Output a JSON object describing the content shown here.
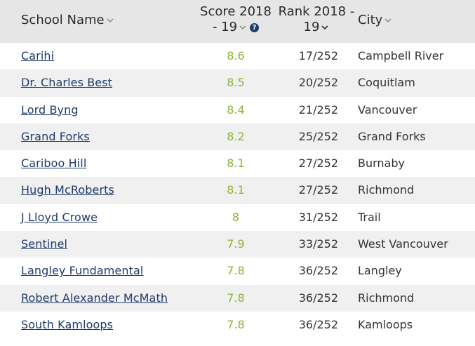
{
  "header": {
    "school_name": "School Name",
    "score_line1": "Score 2018",
    "score_line2": "- 19",
    "rank_line1": "Rank 2018 -",
    "rank_line2": "19",
    "city": "City"
  },
  "colors": {
    "header_bg": "#e6e6e6",
    "link": "#1f3b6b",
    "score": "#8cb23a",
    "alt_row": "#f0f0f0"
  },
  "rows": [
    {
      "name": "Carihi",
      "score": "8.6",
      "rank": "17/252",
      "city": "Campbell River"
    },
    {
      "name": "Dr. Charles Best",
      "score": "8.5",
      "rank": "20/252",
      "city": "Coquitlam"
    },
    {
      "name": "Lord Byng",
      "score": "8.4",
      "rank": "21/252",
      "city": "Vancouver"
    },
    {
      "name": "Grand Forks",
      "score": "8.2",
      "rank": "25/252",
      "city": "Grand Forks"
    },
    {
      "name": "Cariboo Hill",
      "score": "8.1",
      "rank": "27/252",
      "city": "Burnaby"
    },
    {
      "name": "Hugh McRoberts",
      "score": "8.1",
      "rank": "27/252",
      "city": "Richmond"
    },
    {
      "name": "J Lloyd Crowe",
      "score": "8",
      "rank": "31/252",
      "city": "Trail"
    },
    {
      "name": "Sentinel",
      "score": "7.9",
      "rank": "33/252",
      "city": "West Vancouver"
    },
    {
      "name": "Langley Fundamental",
      "score": "7.8",
      "rank": "36/252",
      "city": "Langley"
    },
    {
      "name": "Robert Alexander McMath",
      "score": "7.8",
      "rank": "36/252",
      "city": "Richmond"
    },
    {
      "name": "South Kamloops",
      "score": "7.8",
      "rank": "36/252",
      "city": "Kamloops"
    }
  ]
}
